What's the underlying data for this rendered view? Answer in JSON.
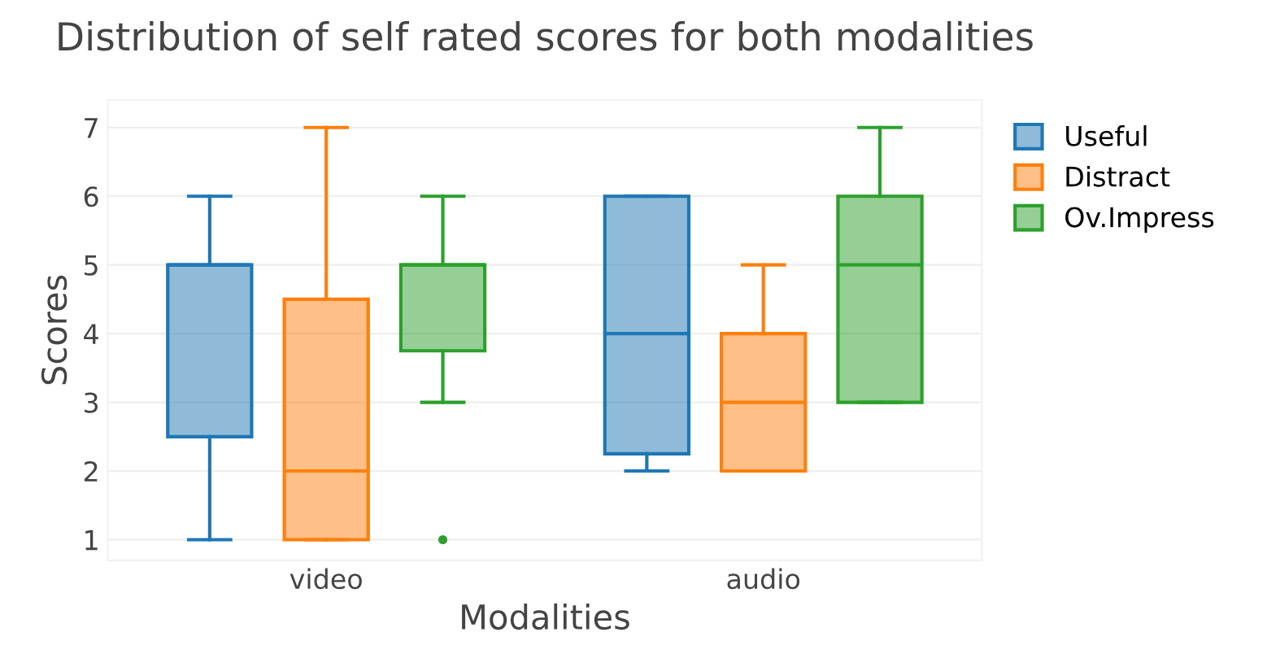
{
  "chart_data": {
    "type": "box",
    "title": "Distribution of self rated scores for both modalities",
    "xlabel": "Modalities",
    "ylabel": "Scores",
    "categories": [
      "video",
      "audio"
    ],
    "series": [
      {
        "name": "Useful",
        "color": "#1f77b4",
        "boxes": [
          {
            "low": 1,
            "q1": 2.5,
            "median": 5,
            "q3": 5,
            "high": 6
          },
          {
            "low": 2,
            "q1": 2.25,
            "median": 4,
            "q3": 6,
            "high": 6
          }
        ]
      },
      {
        "name": "Distract",
        "color": "#ff7f0e",
        "boxes": [
          {
            "low": 1,
            "q1": 1,
            "median": 2,
            "q3": 4.5,
            "high": 7
          },
          {
            "low": 2,
            "q1": 2,
            "median": 3,
            "q3": 4,
            "high": 5
          }
        ]
      },
      {
        "name": "Ov.Impress",
        "color": "#2ca02c",
        "boxes": [
          {
            "low": 3,
            "q1": 3.75,
            "median": 5,
            "q3": 5,
            "high": 6,
            "outliers": [
              1
            ]
          },
          {
            "low": 3,
            "q1": 3,
            "median": 5,
            "q3": 6,
            "high": 7
          }
        ]
      }
    ],
    "ylim": [
      0.7,
      7.4
    ],
    "yticks": [
      1,
      2,
      3,
      4,
      5,
      6,
      7
    ],
    "grid": "y",
    "legend": "top right"
  }
}
